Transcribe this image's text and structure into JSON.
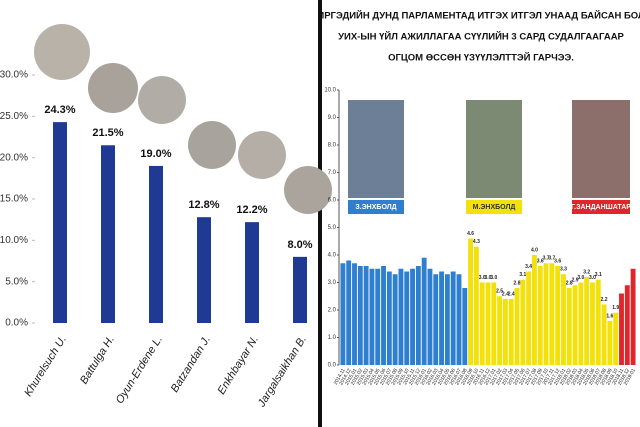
{
  "chart_data": [
    {
      "type": "bar",
      "categories": [
        "Khurelsuch U.",
        "Battulga H.",
        "Oyun-Erdene L.",
        "Batzandan J.",
        "Enkhbayar N.",
        "Jargalsaikhan B."
      ],
      "values": [
        24.3,
        21.5,
        19.0,
        12.8,
        12.2,
        8.0
      ],
      "value_labels": [
        "24.3%",
        "21.5%",
        "19.0%",
        "12.8%",
        "12.2%",
        "8.0%"
      ],
      "color": "#1f3a93",
      "ylim": [
        0,
        30
      ],
      "yticks": [
        {
          "value": 0,
          "label": "0.0%"
        },
        {
          "value": 5,
          "label": "5.0%"
        },
        {
          "value": 10,
          "label": "10.0%"
        },
        {
          "value": 15,
          "label": "15.0%"
        },
        {
          "value": 20,
          "label": "20.0%"
        },
        {
          "value": 25,
          "label": "25.0%"
        },
        {
          "value": 30,
          "label": "30.0%"
        }
      ],
      "grid": false
    },
    {
      "type": "bar",
      "title": [
        "ИРГЭДИЙН ДУНД ПАРЛАМЕНТАД ИТГЭХ ИТГЭЛ УНААД БАЙСАН БОЛ",
        "УИХ-ЫН ҮЙЛ АЖИЛЛАГАА СҮҮЛИЙН 3 САРД СУДАЛГААГААР",
        "ОГЦОМ ӨССӨН ҮЗҮҮЛЭЛТТЭЙ ГАРЧЭЭ."
      ],
      "categories": [
        "2014.11",
        "2014.12",
        "2015.01",
        "2015.02",
        "2015.03",
        "2015.04",
        "2015.05",
        "2015.06",
        "2015.07",
        "2015.08",
        "2015.09",
        "2015.10",
        "2015.11",
        "2015.12",
        "2016.01",
        "2016.02",
        "2016.03",
        "2016.04",
        "2016.05",
        "2016.06",
        "2016.07",
        "2016.08",
        "2016.09",
        "2016.10",
        "2016.11",
        "2016.12",
        "2017.01",
        "2017.02",
        "2017.03",
        "2017.04",
        "2017.05",
        "2017.06",
        "2017.07",
        "2017.08",
        "2017.09",
        "2017.10",
        "2017.11",
        "2017.12",
        "2018.01",
        "2018.02",
        "2018.03",
        "2018.04",
        "2018.05",
        "2018.06",
        "2018.07",
        "2018.08",
        "2018.09",
        "2018.10",
        "2018.11",
        "2018.12",
        "2019.01"
      ],
      "series": [
        {
          "name": "З.ЭНХБОЛД",
          "color": "#2f7fd0",
          "values": [
            3.7,
            3.8,
            3.7,
            3.6,
            3.6,
            3.5,
            3.5,
            3.6,
            3.4,
            3.3,
            3.5,
            3.4,
            3.5,
            3.6,
            3.9,
            3.5,
            3.3,
            3.4,
            3.3,
            3.4,
            3.3,
            2.8,
            null,
            null,
            null,
            null,
            null,
            null,
            null,
            null,
            null,
            null,
            null,
            null,
            null,
            null,
            null,
            null,
            null,
            null,
            null,
            null,
            null,
            null,
            null,
            null,
            null,
            null,
            null,
            null,
            null
          ]
        },
        {
          "name": "М.ЭНХБОЛД",
          "color": "#f2e10a",
          "values": [
            null,
            null,
            null,
            null,
            null,
            null,
            null,
            null,
            null,
            null,
            null,
            null,
            null,
            null,
            null,
            null,
            null,
            null,
            null,
            null,
            null,
            null,
            4.6,
            4.3,
            3.0,
            3.0,
            3.0,
            2.5,
            2.4,
            2.4,
            2.8,
            3.1,
            3.4,
            4.0,
            3.6,
            3.7,
            3.7,
            3.6,
            3.3,
            2.8,
            2.9,
            3.0,
            3.2,
            3.0,
            3.1,
            2.2,
            1.6,
            1.9,
            null,
            null,
            null
          ],
          "value_labels": [
            null,
            null,
            null,
            null,
            null,
            null,
            null,
            null,
            null,
            null,
            null,
            null,
            null,
            null,
            null,
            null,
            null,
            null,
            null,
            null,
            null,
            null,
            "4.6",
            "4.3",
            "3.0",
            "3.0",
            "3.0",
            "2.5",
            "2.4",
            "2.4",
            "2.8",
            "3.1",
            "3.4",
            "4.0",
            "3.6",
            "3.7",
            "3.7",
            "3.6",
            "3.3",
            "2.8",
            "2.9",
            "3.0",
            "3.2",
            "3.0",
            "3.1",
            "2.2",
            "1.6",
            "1.9",
            null,
            null,
            null
          ]
        },
        {
          "name": "Г.ЗАНДАНШАТАР",
          "color": "#e0262b",
          "values": [
            null,
            null,
            null,
            null,
            null,
            null,
            null,
            null,
            null,
            null,
            null,
            null,
            null,
            null,
            null,
            null,
            null,
            null,
            null,
            null,
            null,
            null,
            null,
            null,
            null,
            null,
            null,
            null,
            null,
            null,
            null,
            null,
            null,
            null,
            null,
            null,
            null,
            null,
            null,
            null,
            null,
            null,
            null,
            null,
            null,
            null,
            null,
            null,
            2.6,
            2.9,
            3.5
          ]
        }
      ],
      "ylim": [
        0,
        10
      ],
      "yticks": [
        {
          "value": 0,
          "label": "0.0"
        },
        {
          "value": 1,
          "label": "1.0"
        },
        {
          "value": 2,
          "label": "2.0"
        },
        {
          "value": 3,
          "label": "3.0"
        },
        {
          "value": 4,
          "label": "4.0"
        },
        {
          "value": 5,
          "label": "5.0"
        },
        {
          "value": 6,
          "label": "6.0"
        },
        {
          "value": 7,
          "label": "7.0"
        },
        {
          "value": 8,
          "label": "8.0"
        },
        {
          "value": 9,
          "label": "9.0"
        },
        {
          "value": 10,
          "label": "10.0"
        }
      ],
      "grid": false
    }
  ]
}
